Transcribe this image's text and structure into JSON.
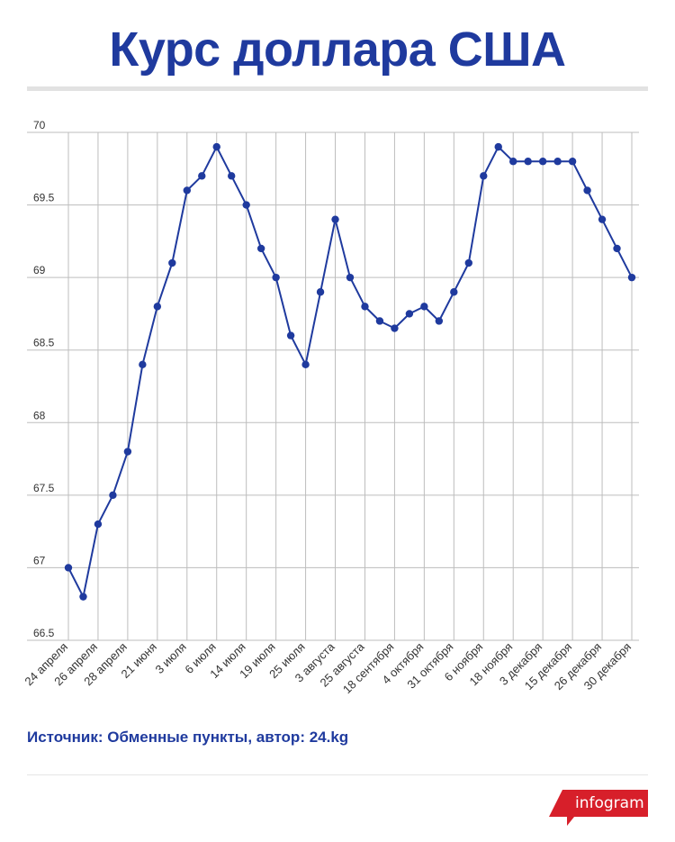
{
  "title": "Курс доллара США",
  "source": "Источник: Обменные пункты, автор: 24.kg",
  "logo": "infogram",
  "colors": {
    "title": "#1f3a9e",
    "line": "#1f3a9e",
    "grid": "#bdbdbd",
    "logo": "#d71f2a"
  },
  "chart_data": {
    "type": "line",
    "title": "",
    "xlabel": "",
    "ylabel": "",
    "ylim": [
      66.5,
      70
    ],
    "yticks": [
      "70",
      "69.5",
      "69",
      "68.5",
      "68",
      "67.5",
      "67",
      "66.5"
    ],
    "grid": true,
    "x_tick_labels": [
      {
        "index": 0,
        "label": "24 апреля"
      },
      {
        "index": 2,
        "label": "26 апреля"
      },
      {
        "index": 4,
        "label": "28 апреля"
      },
      {
        "index": 6,
        "label": "21 июня"
      },
      {
        "index": 8,
        "label": "3 июля"
      },
      {
        "index": 10,
        "label": "6 июля"
      },
      {
        "index": 12,
        "label": "14 июля"
      },
      {
        "index": 14,
        "label": "19 июля"
      },
      {
        "index": 16,
        "label": "25 июля"
      },
      {
        "index": 18,
        "label": "3 августа"
      },
      {
        "index": 20,
        "label": "25 августа"
      },
      {
        "index": 22,
        "label": "18 сентября"
      },
      {
        "index": 24,
        "label": "4 октября"
      },
      {
        "index": 26,
        "label": "31 октября"
      },
      {
        "index": 28,
        "label": "6 ноября"
      },
      {
        "index": 30,
        "label": "18 ноября"
      },
      {
        "index": 32,
        "label": "3 декабря"
      },
      {
        "index": 34,
        "label": "15 декабря"
      },
      {
        "index": 36,
        "label": "26 декабря"
      },
      {
        "index": 38,
        "label": "30 декабря"
      }
    ],
    "values": [
      67.0,
      66.8,
      67.3,
      67.5,
      67.8,
      68.4,
      68.8,
      69.1,
      69.6,
      69.7,
      69.9,
      69.7,
      69.5,
      69.2,
      69.0,
      68.6,
      68.4,
      68.9,
      69.4,
      69.0,
      68.8,
      68.7,
      68.65,
      68.75,
      68.8,
      68.7,
      68.9,
      69.1,
      69.7,
      69.9,
      69.8,
      69.8,
      69.8,
      69.8,
      69.8,
      69.6,
      69.4,
      69.2,
      69.0
    ]
  }
}
